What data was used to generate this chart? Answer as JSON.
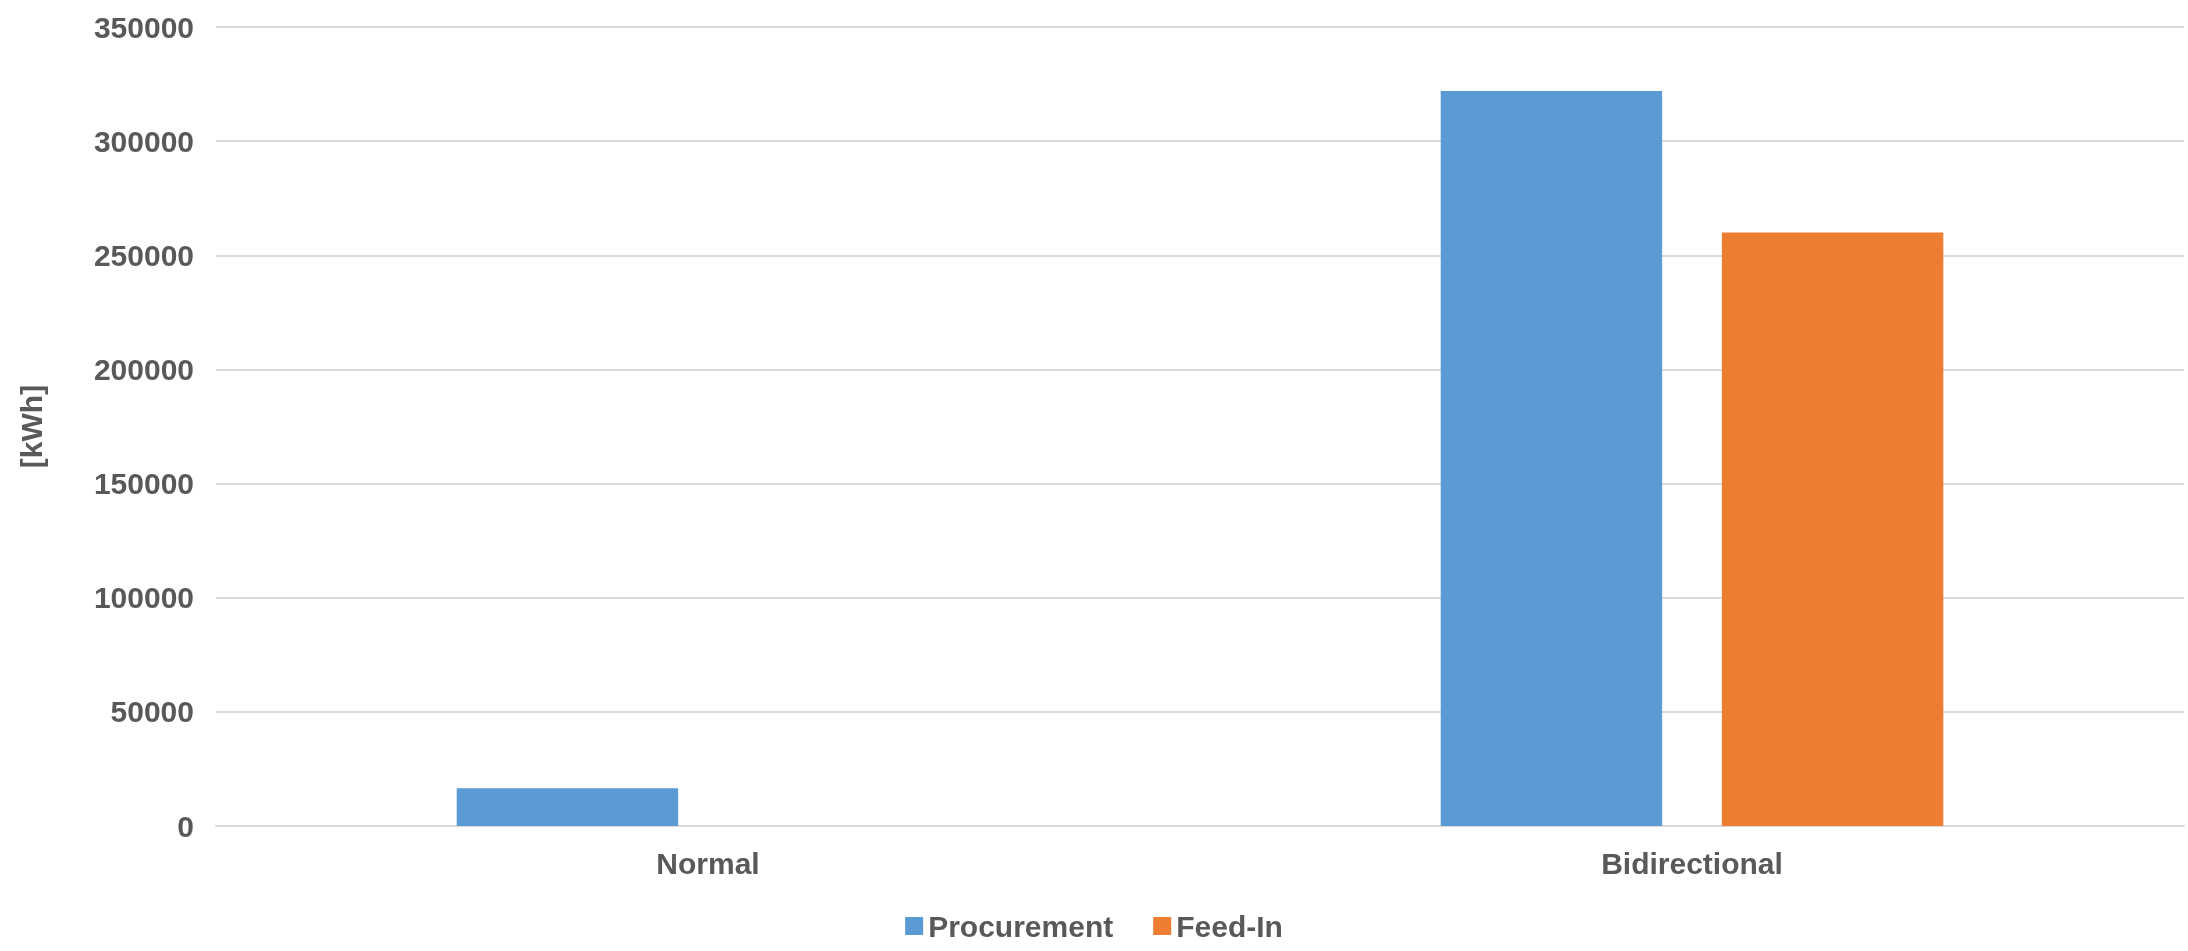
{
  "chart_data": {
    "type": "bar",
    "ylabel": "[kWh]",
    "categories": [
      "Normal",
      "Bidirectional"
    ],
    "series": [
      {
        "name": "Procurement",
        "color": "#5b9bd5",
        "values": [
          16500,
          322000
        ]
      },
      {
        "name": "Feed-In",
        "color": "#ed7d31",
        "values": [
          0,
          260000
        ]
      }
    ],
    "ylim": [
      0,
      350000
    ],
    "yticks": [
      0,
      50000,
      100000,
      150000,
      200000,
      250000,
      300000,
      350000
    ],
    "grid": "y",
    "legend": "bottom"
  }
}
